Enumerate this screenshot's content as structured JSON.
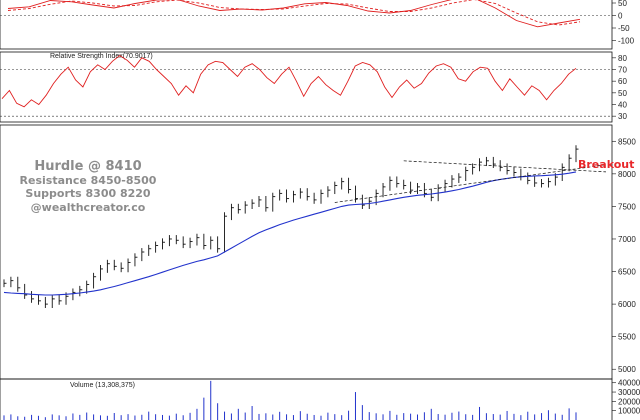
{
  "annotations": {
    "hurdle": "Hurdle @ 8410",
    "resistance": "Resistance 8450-8500",
    "supports": "Supports 8300 8220",
    "handle": "@wealthcreator.co",
    "breakout": "Breakout"
  },
  "colors": {
    "candle": "#111111",
    "moving_average": "#2233cc",
    "indicator_line": "#e02020",
    "level_line": "#333333",
    "breakout_text": "#e8272a",
    "watermark_text": "#8c8c8c",
    "volume_bars": "#2233cc"
  },
  "chart_data": [
    {
      "type": "line",
      "panel": "oscillator",
      "title": "",
      "yticks": [
        "50",
        "0",
        "-50",
        "-100"
      ],
      "ylim": [
        -130,
        70
      ],
      "reference_lines": [
        0
      ],
      "series": [
        {
          "style": "solid",
          "values": [
            28,
            35,
            60,
            55,
            42,
            30,
            48,
            62,
            64,
            38,
            20,
            26,
            22,
            30,
            47,
            52,
            40,
            18,
            10,
            20,
            44,
            65,
            70,
            30,
            -20,
            -45,
            -30,
            -15
          ]
        },
        {
          "style": "dashed",
          "values": [
            20,
            28,
            45,
            58,
            50,
            38,
            40,
            55,
            62,
            50,
            32,
            26,
            24,
            26,
            38,
            48,
            46,
            30,
            16,
            16,
            30,
            50,
            64,
            48,
            10,
            -25,
            -38,
            -25
          ]
        }
      ]
    },
    {
      "type": "line",
      "panel": "rsi",
      "title": "Relative Strength Index(70.9017)",
      "yticks": [
        "80",
        "70",
        "60",
        "50",
        "40",
        "30"
      ],
      "ylim": [
        25,
        85
      ],
      "reference_lines": [
        70,
        30
      ],
      "values": [
        45,
        52,
        41,
        38,
        44,
        40,
        48,
        58,
        66,
        72,
        61,
        55,
        68,
        74,
        70,
        77,
        82,
        78,
        72,
        80,
        77,
        70,
        64,
        58,
        48,
        56,
        50,
        66,
        74,
        77,
        76,
        70,
        64,
        72,
        75,
        70,
        63,
        58,
        66,
        72,
        60,
        47,
        58,
        64,
        57,
        52,
        48,
        60,
        73,
        76,
        74,
        68,
        55,
        46,
        55,
        61,
        54,
        58,
        67,
        73,
        75,
        72,
        62,
        60,
        68,
        72,
        71,
        60,
        52,
        62,
        55,
        48,
        56,
        52,
        44,
        52,
        58,
        66,
        71
      ]
    },
    {
      "type": "candlestick",
      "panel": "price",
      "title": "",
      "yticks": [
        "8500",
        "8000",
        "7500",
        "7000",
        "6500",
        "6000",
        "5500",
        "5000"
      ],
      "ylim": [
        4850,
        8750
      ],
      "close": [
        6320,
        6360,
        6250,
        6140,
        6080,
        6050,
        6000,
        6080,
        6050,
        6120,
        6180,
        6220,
        6300,
        6420,
        6540,
        6620,
        6580,
        6550,
        6640,
        6720,
        6800,
        6850,
        6900,
        6950,
        7000,
        6980,
        6920,
        6960,
        7020,
        6900,
        6980,
        6850,
        7350,
        7480,
        7450,
        7520,
        7550,
        7600,
        7480,
        7650,
        7700,
        7620,
        7680,
        7720,
        7650,
        7600,
        7700,
        7750,
        7820,
        7880,
        7760,
        7620,
        7520,
        7580,
        7700,
        7800,
        7900,
        7850,
        7820,
        7750,
        7800,
        7700,
        7640,
        7780,
        7850,
        7920,
        7950,
        8050,
        8100,
        8180,
        8200,
        8150,
        8100,
        8050,
        8020,
        7960,
        7900,
        7860,
        7850,
        7880,
        7950,
        8100,
        8240,
        8380
      ],
      "moving_average": [
        6180,
        6170,
        6165,
        6160,
        6150,
        6145,
        6140,
        6140,
        6145,
        6150,
        6160,
        6170,
        6185,
        6200,
        6220,
        6245,
        6270,
        6300,
        6330,
        6360,
        6390,
        6420,
        6455,
        6490,
        6525,
        6560,
        6595,
        6625,
        6655,
        6680,
        6710,
        6740,
        6800,
        6860,
        6920,
        6980,
        7040,
        7095,
        7140,
        7180,
        7220,
        7255,
        7290,
        7320,
        7350,
        7380,
        7410,
        7440,
        7470,
        7500,
        7520,
        7530,
        7535,
        7545,
        7560,
        7580,
        7600,
        7620,
        7640,
        7655,
        7670,
        7680,
        7690,
        7705,
        7720,
        7740,
        7760,
        7785,
        7810,
        7840,
        7870,
        7895,
        7915,
        7930,
        7945,
        7955,
        7962,
        7968,
        7972,
        7978,
        7985,
        7995,
        8010,
        8030
      ],
      "trendlines": [
        {
          "from": [
            48,
            7560
          ],
          "to": [
            83,
            8060
          ]
        },
        {
          "from": [
            58,
            8200
          ],
          "to": [
            83,
            8040
          ]
        }
      ]
    },
    {
      "type": "bar",
      "panel": "volume",
      "title": "Volume (13,308,375)",
      "yticks": [
        "40000",
        "30000",
        "20000",
        "10000"
      ],
      "ylim": [
        0,
        44000
      ],
      "values": [
        5000,
        6000,
        4000,
        3500,
        5500,
        4500,
        3000,
        6000,
        5000,
        4000,
        7000,
        5500,
        8000,
        6000,
        5000,
        4500,
        7500,
        5200,
        6300,
        4800,
        5600,
        9000,
        6200,
        5400,
        4700,
        6800,
        5100,
        7700,
        12000,
        24000,
        42000,
        18000,
        9000,
        7000,
        12000,
        8000,
        15000,
        6500,
        7200,
        5900,
        8800,
        6100,
        5300,
        9500,
        6700,
        5400,
        4600,
        7900,
        6300,
        5200,
        10000,
        30000,
        16000,
        8500,
        7200,
        6100,
        9800,
        5600,
        7400,
        6800,
        5900,
        8300,
        12000,
        6400,
        5700,
        7800,
        9100,
        6200,
        5500,
        14000,
        7300,
        6400,
        5800,
        9700,
        6600,
        5200,
        8900,
        6000,
        7400,
        10500,
        6900,
        5600,
        12500,
        8200
      ]
    }
  ]
}
